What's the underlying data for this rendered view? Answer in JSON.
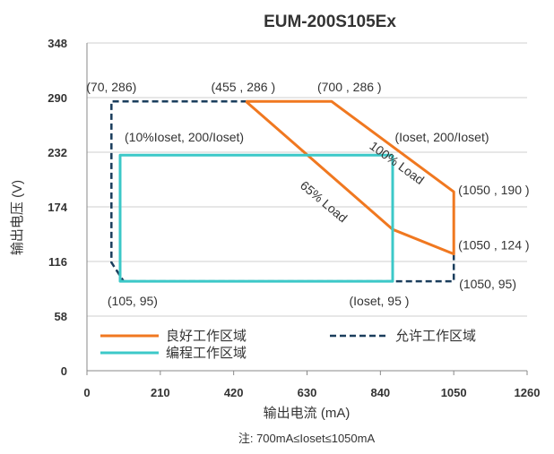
{
  "chart_data": {
    "type": "line",
    "title": "EUM-200S105Ex",
    "xlabel": "输出电流 (mA)",
    "ylabel": "输出电压 (V)",
    "note": "注: 700mA≤Ioset≤1050mA",
    "xlim": [
      0,
      1260
    ],
    "ylim": [
      0,
      348
    ],
    "xticks": [
      "0",
      "210",
      "420",
      "630",
      "840",
      "1050",
      "1260"
    ],
    "yticks": [
      "0",
      "58",
      "116",
      "174",
      "232",
      "290",
      "348"
    ],
    "grid": true,
    "legend": {
      "placement": "bottom-inside"
    },
    "colors": {
      "good": "#f07820",
      "allowed": "#1a3d5c",
      "program": "#3cc8c8"
    },
    "series": [
      {
        "name": "良好工作区域",
        "style": "solid",
        "color": "#f07820",
        "x": [
          455,
          700,
          1050,
          1050,
          875,
          455
        ],
        "y": [
          286,
          286,
          190,
          124,
          150,
          286
        ]
      },
      {
        "name": "允许工作区域",
        "style": "dashed",
        "color": "#1a3d5c",
        "x": [
          1050,
          1050,
          105,
          70,
          70,
          455
        ],
        "y": [
          124,
          95,
          95,
          115,
          286,
          286
        ]
      },
      {
        "name": "编程工作区域",
        "style": "solid",
        "color": "#3cc8c8",
        "x": [
          875,
          875,
          95,
          95,
          875
        ],
        "y": [
          229,
          95,
          95,
          229,
          229
        ]
      }
    ],
    "annotations": [
      {
        "text": "(70, 286)",
        "x": 70,
        "y": 286
      },
      {
        "text": "(455 , 286 )",
        "x": 455,
        "y": 286
      },
      {
        "text": "(700 , 286 )",
        "x": 700,
        "y": 286
      },
      {
        "text": "(10%Ioset, 200/Ioset)",
        "x": 95,
        "y": 229
      },
      {
        "text": "(Ioset, 200/Ioset)",
        "x": 875,
        "y": 229
      },
      {
        "text": "(1050 , 190 )",
        "x": 1050,
        "y": 190
      },
      {
        "text": "(1050 , 124 )",
        "x": 1050,
        "y": 124
      },
      {
        "text": "(1050, 95)",
        "x": 1050,
        "y": 95
      },
      {
        "text": "(105, 95)",
        "x": 105,
        "y": 95
      },
      {
        "text": "(Ioset, 95 )",
        "x": 875,
        "y": 95
      },
      {
        "text": "100% Load",
        "x": 880,
        "y": 217
      },
      {
        "text": "65% Load",
        "x": 670,
        "y": 176
      }
    ]
  }
}
